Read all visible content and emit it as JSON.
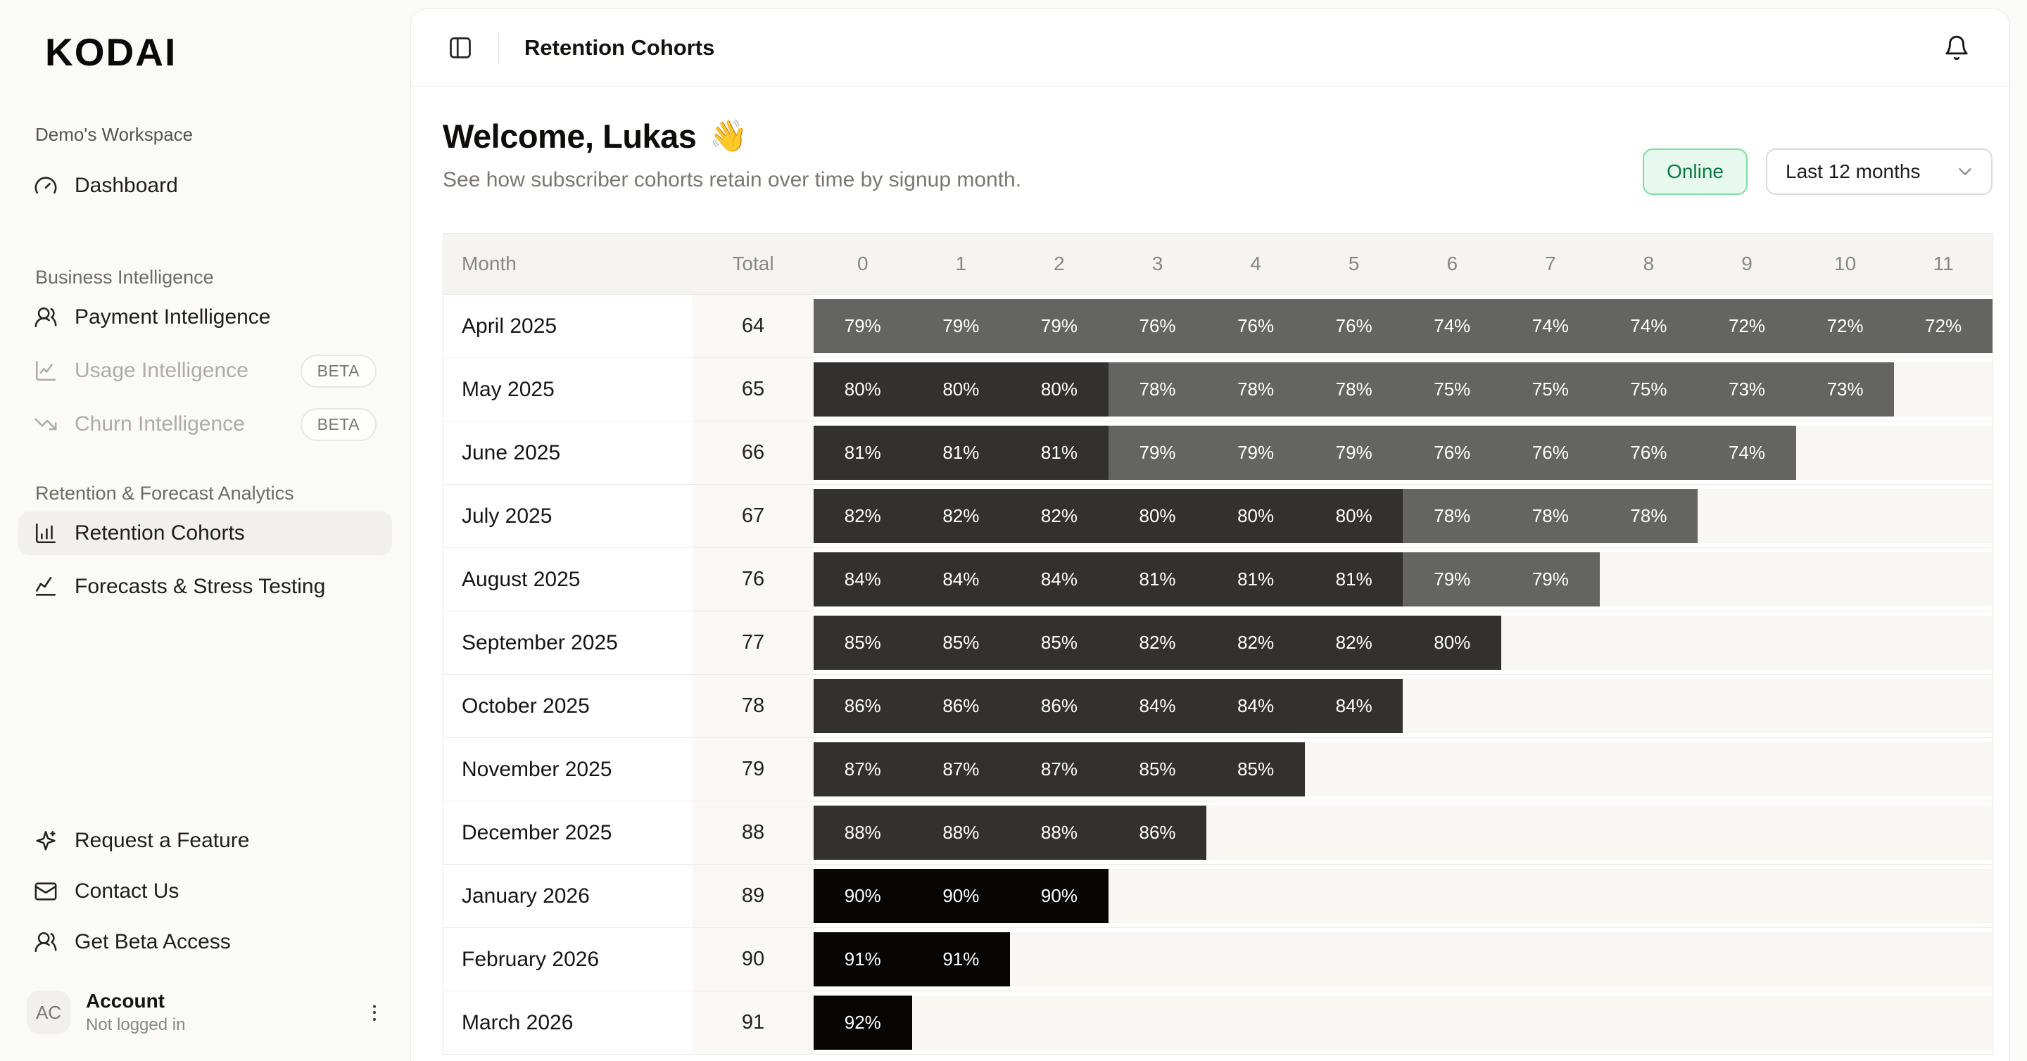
{
  "app": {
    "logo": "KODAI",
    "workspace": "Demo's Workspace"
  },
  "sidebar": {
    "dashboard": {
      "label": "Dashboard",
      "icon": "gauge-icon"
    },
    "sections": [
      {
        "label": "Business Intelligence",
        "items": [
          {
            "label": "Payment Intelligence",
            "icon": "users-icon",
            "disabled": false,
            "active": false,
            "badge": null
          },
          {
            "label": "Usage Intelligence",
            "icon": "chart-line-icon",
            "disabled": true,
            "active": false,
            "badge": "BETA"
          },
          {
            "label": "Churn Intelligence",
            "icon": "trending-down-icon",
            "disabled": true,
            "active": false,
            "badge": "BETA"
          }
        ]
      },
      {
        "label": "Retention & Forecast Analytics",
        "items": [
          {
            "label": "Retention Cohorts",
            "icon": "bar-chart-icon",
            "disabled": false,
            "active": true,
            "badge": null
          },
          {
            "label": "Forecasts & Stress Testing",
            "icon": "trending-up-icon",
            "disabled": false,
            "active": false,
            "badge": null
          }
        ]
      }
    ],
    "footer_items": [
      {
        "label": "Request a Feature",
        "icon": "sparkles-icon"
      },
      {
        "label": "Contact Us",
        "icon": "mail-icon"
      },
      {
        "label": "Get Beta Access",
        "icon": "users-icon"
      }
    ],
    "account": {
      "initials": "AC",
      "name": "Account",
      "status": "Not logged in"
    }
  },
  "topbar": {
    "title": "Retention Cohorts"
  },
  "header": {
    "welcome": "Welcome, Lukas",
    "welcome_emoji": "👋",
    "subtitle": "See how subscriber cohorts retain over time by signup month.",
    "status_badge": "Online",
    "range_selector": "Last 12 months"
  },
  "table": {
    "columns": [
      "Month",
      "Total",
      "0",
      "1",
      "2",
      "3",
      "4",
      "5",
      "6",
      "7",
      "8",
      "9",
      "10",
      "11"
    ],
    "rows": [
      {
        "month": "April 2025",
        "total": 64,
        "values": [
          79,
          79,
          79,
          76,
          76,
          76,
          74,
          74,
          74,
          72,
          72,
          72
        ]
      },
      {
        "month": "May 2025",
        "total": 65,
        "values": [
          80,
          80,
          80,
          78,
          78,
          78,
          75,
          75,
          75,
          73,
          73
        ]
      },
      {
        "month": "June 2025",
        "total": 66,
        "values": [
          81,
          81,
          81,
          79,
          79,
          79,
          76,
          76,
          76,
          74
        ]
      },
      {
        "month": "July 2025",
        "total": 67,
        "values": [
          82,
          82,
          82,
          80,
          80,
          80,
          78,
          78,
          78
        ]
      },
      {
        "month": "August 2025",
        "total": 76,
        "values": [
          84,
          84,
          84,
          81,
          81,
          81,
          79,
          79
        ]
      },
      {
        "month": "September 2025",
        "total": 77,
        "values": [
          85,
          85,
          85,
          82,
          82,
          82,
          80
        ]
      },
      {
        "month": "October 2025",
        "total": 78,
        "values": [
          86,
          86,
          86,
          84,
          84,
          84
        ]
      },
      {
        "month": "November 2025",
        "total": 79,
        "values": [
          87,
          87,
          87,
          85,
          85
        ]
      },
      {
        "month": "December 2025",
        "total": 88,
        "values": [
          88,
          88,
          88,
          86
        ]
      },
      {
        "month": "January 2026",
        "total": 89,
        "values": [
          90,
          90,
          90
        ]
      },
      {
        "month": "February 2026",
        "total": 90,
        "values": [
          91,
          91
        ]
      },
      {
        "month": "March 2026",
        "total": 91,
        "values": [
          92
        ]
      }
    ],
    "value_suffix": "%",
    "cell_colors": {
      "low": "#646462",
      "mid": "#333130",
      "high": "#070605",
      "mid_min": 80,
      "high_min": 90
    }
  },
  "colors": {
    "page_bg": "#FAFAF8",
    "card_bg": "#FFFFFF",
    "online_bg": "#E7F8EE",
    "online_border": "#7EDCA7",
    "online_text": "#0B7A41"
  }
}
